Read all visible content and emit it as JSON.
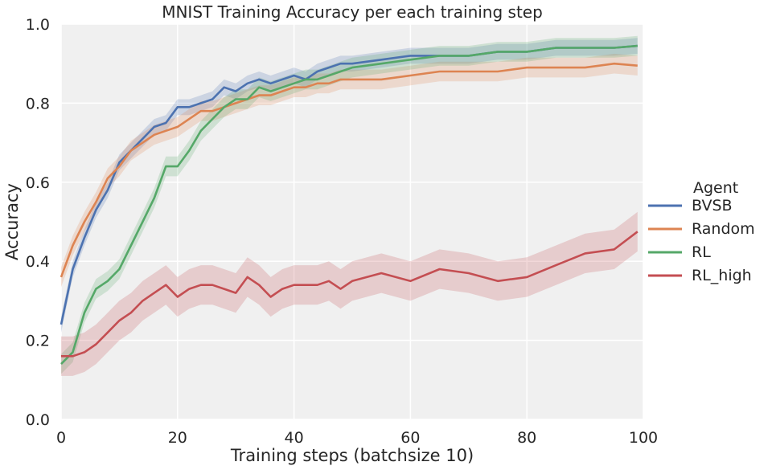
{
  "chart_data": {
    "type": "line",
    "title": "MNIST Training Accuracy per each training step",
    "xlabel": "Training steps (batchsize 10)",
    "ylabel": "Accuracy",
    "xlim": [
      0,
      100
    ],
    "ylim": [
      0.0,
      1.0
    ],
    "xticks": [
      "0",
      "20",
      "40",
      "60",
      "80",
      "100"
    ],
    "yticks": [
      "0.0",
      "0.2",
      "0.4",
      "0.6",
      "0.8",
      "1.0"
    ],
    "grid": true,
    "legend": {
      "title": "Agent",
      "placement": "right"
    },
    "x_keypoints": [
      0,
      2,
      4,
      6,
      8,
      10,
      12,
      14,
      16,
      18,
      20,
      22,
      24,
      26,
      28,
      30,
      32,
      34,
      36,
      38,
      40,
      42,
      44,
      46,
      48,
      50,
      55,
      60,
      65,
      70,
      75,
      80,
      85,
      90,
      95,
      99
    ],
    "series": [
      {
        "name": "BVSB",
        "color": "#4c72b0",
        "values": [
          0.24,
          0.38,
          0.46,
          0.53,
          0.58,
          0.65,
          0.68,
          0.71,
          0.74,
          0.75,
          0.79,
          0.79,
          0.8,
          0.81,
          0.84,
          0.83,
          0.85,
          0.86,
          0.85,
          0.86,
          0.87,
          0.86,
          0.88,
          0.89,
          0.9,
          0.9,
          0.91,
          0.92,
          0.92,
          0.92,
          0.93,
          0.93,
          0.94,
          0.94,
          0.94,
          0.945
        ],
        "band": 0.02
      },
      {
        "name": "Random",
        "color": "#dd8452",
        "values": [
          0.36,
          0.44,
          0.5,
          0.55,
          0.61,
          0.64,
          0.68,
          0.7,
          0.72,
          0.73,
          0.74,
          0.76,
          0.78,
          0.78,
          0.79,
          0.8,
          0.81,
          0.82,
          0.82,
          0.83,
          0.84,
          0.84,
          0.85,
          0.85,
          0.86,
          0.86,
          0.86,
          0.87,
          0.88,
          0.88,
          0.88,
          0.89,
          0.89,
          0.89,
          0.9,
          0.895
        ],
        "band": 0.025
      },
      {
        "name": "RL",
        "color": "#55a868",
        "values": [
          0.14,
          0.17,
          0.27,
          0.33,
          0.35,
          0.38,
          0.44,
          0.5,
          0.56,
          0.64,
          0.64,
          0.68,
          0.73,
          0.76,
          0.79,
          0.81,
          0.81,
          0.84,
          0.83,
          0.84,
          0.85,
          0.86,
          0.86,
          0.87,
          0.88,
          0.89,
          0.9,
          0.91,
          0.92,
          0.92,
          0.93,
          0.93,
          0.94,
          0.94,
          0.94,
          0.945
        ],
        "band": 0.025
      },
      {
        "name": "RL_high",
        "color": "#c44e52",
        "values": [
          0.16,
          0.16,
          0.17,
          0.19,
          0.22,
          0.25,
          0.27,
          0.3,
          0.32,
          0.34,
          0.31,
          0.33,
          0.34,
          0.34,
          0.33,
          0.32,
          0.36,
          0.34,
          0.31,
          0.33,
          0.34,
          0.34,
          0.34,
          0.35,
          0.33,
          0.35,
          0.37,
          0.35,
          0.38,
          0.37,
          0.35,
          0.36,
          0.39,
          0.42,
          0.43,
          0.475
        ],
        "band": 0.05
      }
    ]
  }
}
